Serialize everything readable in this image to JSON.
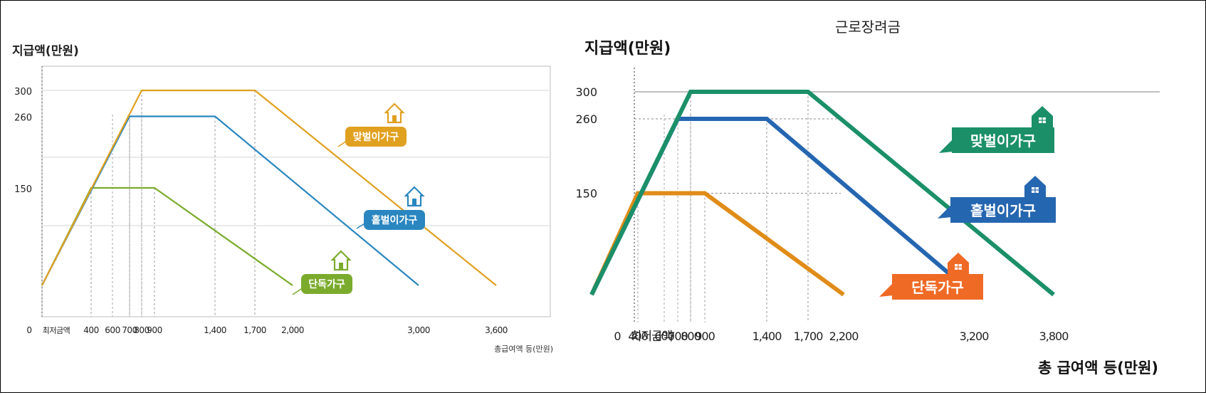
{
  "chart_data": [
    {
      "type": "line",
      "title": "",
      "ylabel": "지급액(만원)",
      "xlabel": "총급여액 등(만원)",
      "y_ticks": [
        "300",
        "260",
        "150"
      ],
      "x_ticks": [
        "0",
        "최저금액",
        "400",
        "600",
        "700",
        "800",
        "900",
        "1,400",
        "1,700",
        "2,000",
        "3,000",
        "3,600"
      ],
      "grid": true,
      "series": [
        {
          "name": "맞벌이가구",
          "color": "#e0a020",
          "x": [
            0,
            800,
            1700,
            3600
          ],
          "y": [
            0,
            300,
            300,
            0
          ]
        },
        {
          "name": "홑벌이가구",
          "color": "#2a86c0",
          "x": [
            0,
            700,
            1400,
            3000
          ],
          "y": [
            0,
            260,
            260,
            0
          ]
        },
        {
          "name": "단독가구",
          "color": "#7bab2c",
          "x": [
            0,
            400,
            900,
            2000
          ],
          "y": [
            0,
            150,
            150,
            0
          ]
        }
      ]
    },
    {
      "type": "line",
      "title": "근로장려금",
      "ylabel": "지급액(만원)",
      "xlabel": "총 급여액 등(만원)",
      "y_ticks": [
        "300",
        "260",
        "150"
      ],
      "x_ticks": [
        "0",
        "최저금액",
        "400",
        "600",
        "700",
        "800",
        "900",
        "1,400",
        "1,700",
        "2,200",
        "3,200",
        "3,800"
      ],
      "grid": true,
      "series": [
        {
          "name": "맞벌이가구",
          "color": "#1b9068",
          "x": [
            0,
            800,
            1700,
            3800
          ],
          "y": [
            0,
            300,
            300,
            0
          ]
        },
        {
          "name": "홑벌이가구",
          "color": "#2566b0",
          "x": [
            0,
            700,
            1400,
            3200
          ],
          "y": [
            0,
            260,
            260,
            0
          ]
        },
        {
          "name": "단독가구",
          "color": "#e08c18",
          "x": [
            0,
            400,
            900,
            2200
          ],
          "y": [
            0,
            150,
            150,
            0
          ]
        }
      ]
    }
  ]
}
